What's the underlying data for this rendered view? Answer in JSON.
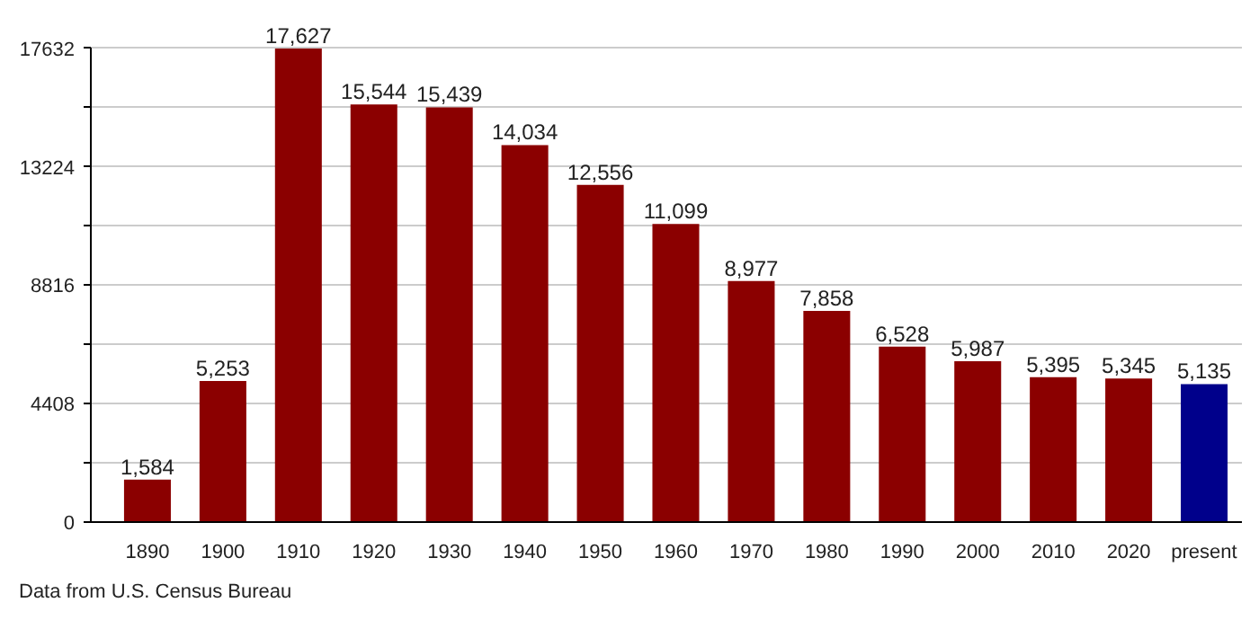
{
  "chart_data": {
    "type": "bar",
    "categories": [
      "1890",
      "1900",
      "1910",
      "1920",
      "1930",
      "1940",
      "1950",
      "1960",
      "1970",
      "1980",
      "1990",
      "2000",
      "2010",
      "2020",
      "present"
    ],
    "values": [
      1584,
      5253,
      17627,
      15544,
      15439,
      14034,
      12556,
      11099,
      8977,
      7858,
      6528,
      5987,
      5395,
      5345,
      5135
    ],
    "value_labels": [
      "1,584",
      "5,253",
      "17,627",
      "15,544",
      "15,439",
      "14,034",
      "12,556",
      "11,099",
      "8,977",
      "7,858",
      "6,528",
      "5,987",
      "5,395",
      "5,345",
      "5,135"
    ],
    "colors": [
      "#8b0000",
      "#8b0000",
      "#8b0000",
      "#8b0000",
      "#8b0000",
      "#8b0000",
      "#8b0000",
      "#8b0000",
      "#8b0000",
      "#8b0000",
      "#8b0000",
      "#8b0000",
      "#8b0000",
      "#8b0000",
      "#00008b"
    ],
    "ylim": [
      0,
      17632
    ],
    "yticks": [
      0,
      {
        "value": 2204,
        "label": null
      },
      4408,
      {
        "value": 6612,
        "label": null
      },
      8816,
      {
        "value": 11020,
        "label": null
      },
      13224,
      {
        "value": 15428,
        "label": null
      },
      17632
    ],
    "grid": "y",
    "annotations": [
      "Data from U.S. Census Bureau"
    ]
  }
}
